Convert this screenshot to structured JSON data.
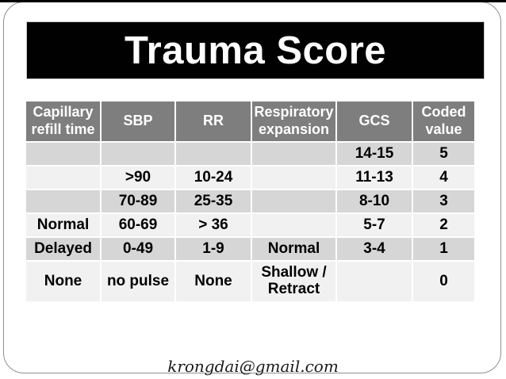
{
  "slide": {
    "title": "Trauma Score",
    "footer": "krongdai@gmail.com"
  },
  "table": {
    "columns": [
      "Capillary refill time",
      "SBP",
      "RR",
      "Respiratory expansion",
      "GCS",
      "Coded value"
    ],
    "rows": [
      [
        "",
        "",
        "",
        "",
        "14-15",
        "5"
      ],
      [
        "",
        ">90",
        "10-24",
        "",
        "11-13",
        "4"
      ],
      [
        "",
        "70-89",
        "25-35",
        "",
        "8-10",
        "3"
      ],
      [
        "Normal",
        "60-69",
        "> 36",
        "",
        "5-7",
        "2"
      ],
      [
        "Delayed",
        "0-49",
        "1-9",
        "Normal",
        "3-4",
        "1"
      ],
      [
        "None",
        "no pulse",
        "None",
        "Shallow / Retract",
        "",
        "0"
      ]
    ],
    "colors": {
      "header_bg": "#7e7e7e",
      "header_text": "#ffffff",
      "row_band_dark": "#d6d6d6",
      "row_band_light": "#f1f1f1",
      "title_bg": "#010101",
      "title_text": "#ffffff",
      "separator": "#ffffff"
    }
  }
}
